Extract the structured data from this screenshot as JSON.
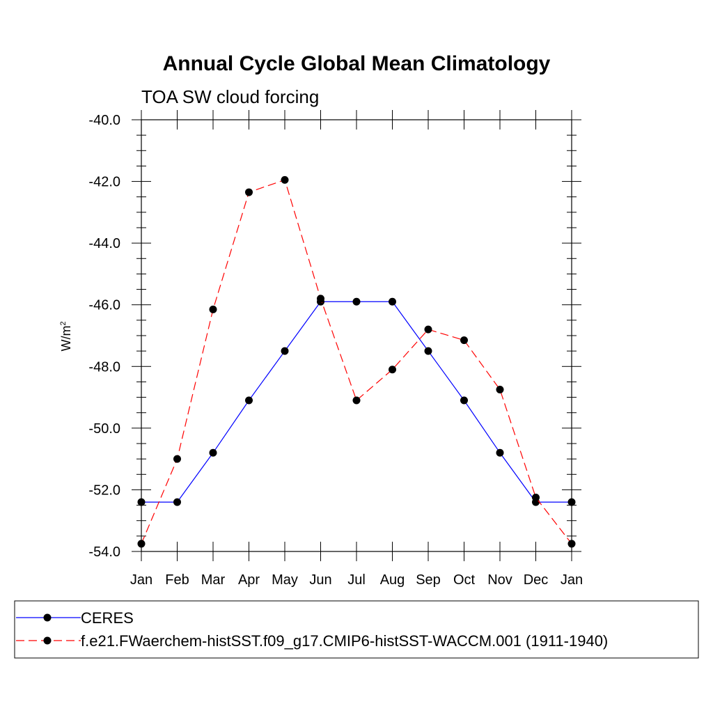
{
  "chart_data": {
    "type": "line",
    "title": "Annual Cycle Global Mean Climatology",
    "subtitle": "TOA SW cloud forcing",
    "xlabel": "",
    "ylabel": "W/m",
    "ylabel_superscript": "2",
    "categories": [
      "Jan",
      "Feb",
      "Mar",
      "Apr",
      "May",
      "Jun",
      "Jul",
      "Aug",
      "Sep",
      "Oct",
      "Nov",
      "Dec",
      "Jan"
    ],
    "ylim": [
      -54.0,
      -40.0
    ],
    "yticks": [
      -54.0,
      -52.0,
      -50.0,
      -48.0,
      -46.0,
      -44.0,
      -42.0,
      -40.0
    ],
    "ytick_labels": [
      "-54.0",
      "-52.0",
      "-50.0",
      "-48.0",
      "-46.0",
      "-44.0",
      "-42.0",
      "-40.0"
    ],
    "series": [
      {
        "name": "CERES",
        "color": "#0000ff",
        "style": "solid",
        "values": [
          -52.4,
          -52.4,
          -50.8,
          -49.1,
          -47.5,
          -45.9,
          -45.9,
          -45.9,
          -47.5,
          -49.1,
          -50.8,
          -52.4,
          -52.4
        ]
      },
      {
        "name": "f.e21.FWaerchem-histSST.f09_g17.CMIP6-histSST-WACCM.001 (1911-1940)",
        "color": "#ff0000",
        "style": "dashed",
        "values": [
          -53.75,
          -51.0,
          -46.15,
          -42.35,
          -41.95,
          -45.8,
          -49.1,
          -48.1,
          -46.8,
          -47.15,
          -48.75,
          -52.25,
          -53.75
        ]
      }
    ],
    "legend": [
      "CERES",
      "f.e21.FWaerchem-histSST.f09_g17.CMIP6-histSST-WACCM.001 (1911-1940)"
    ],
    "legend_position": "bottom"
  }
}
